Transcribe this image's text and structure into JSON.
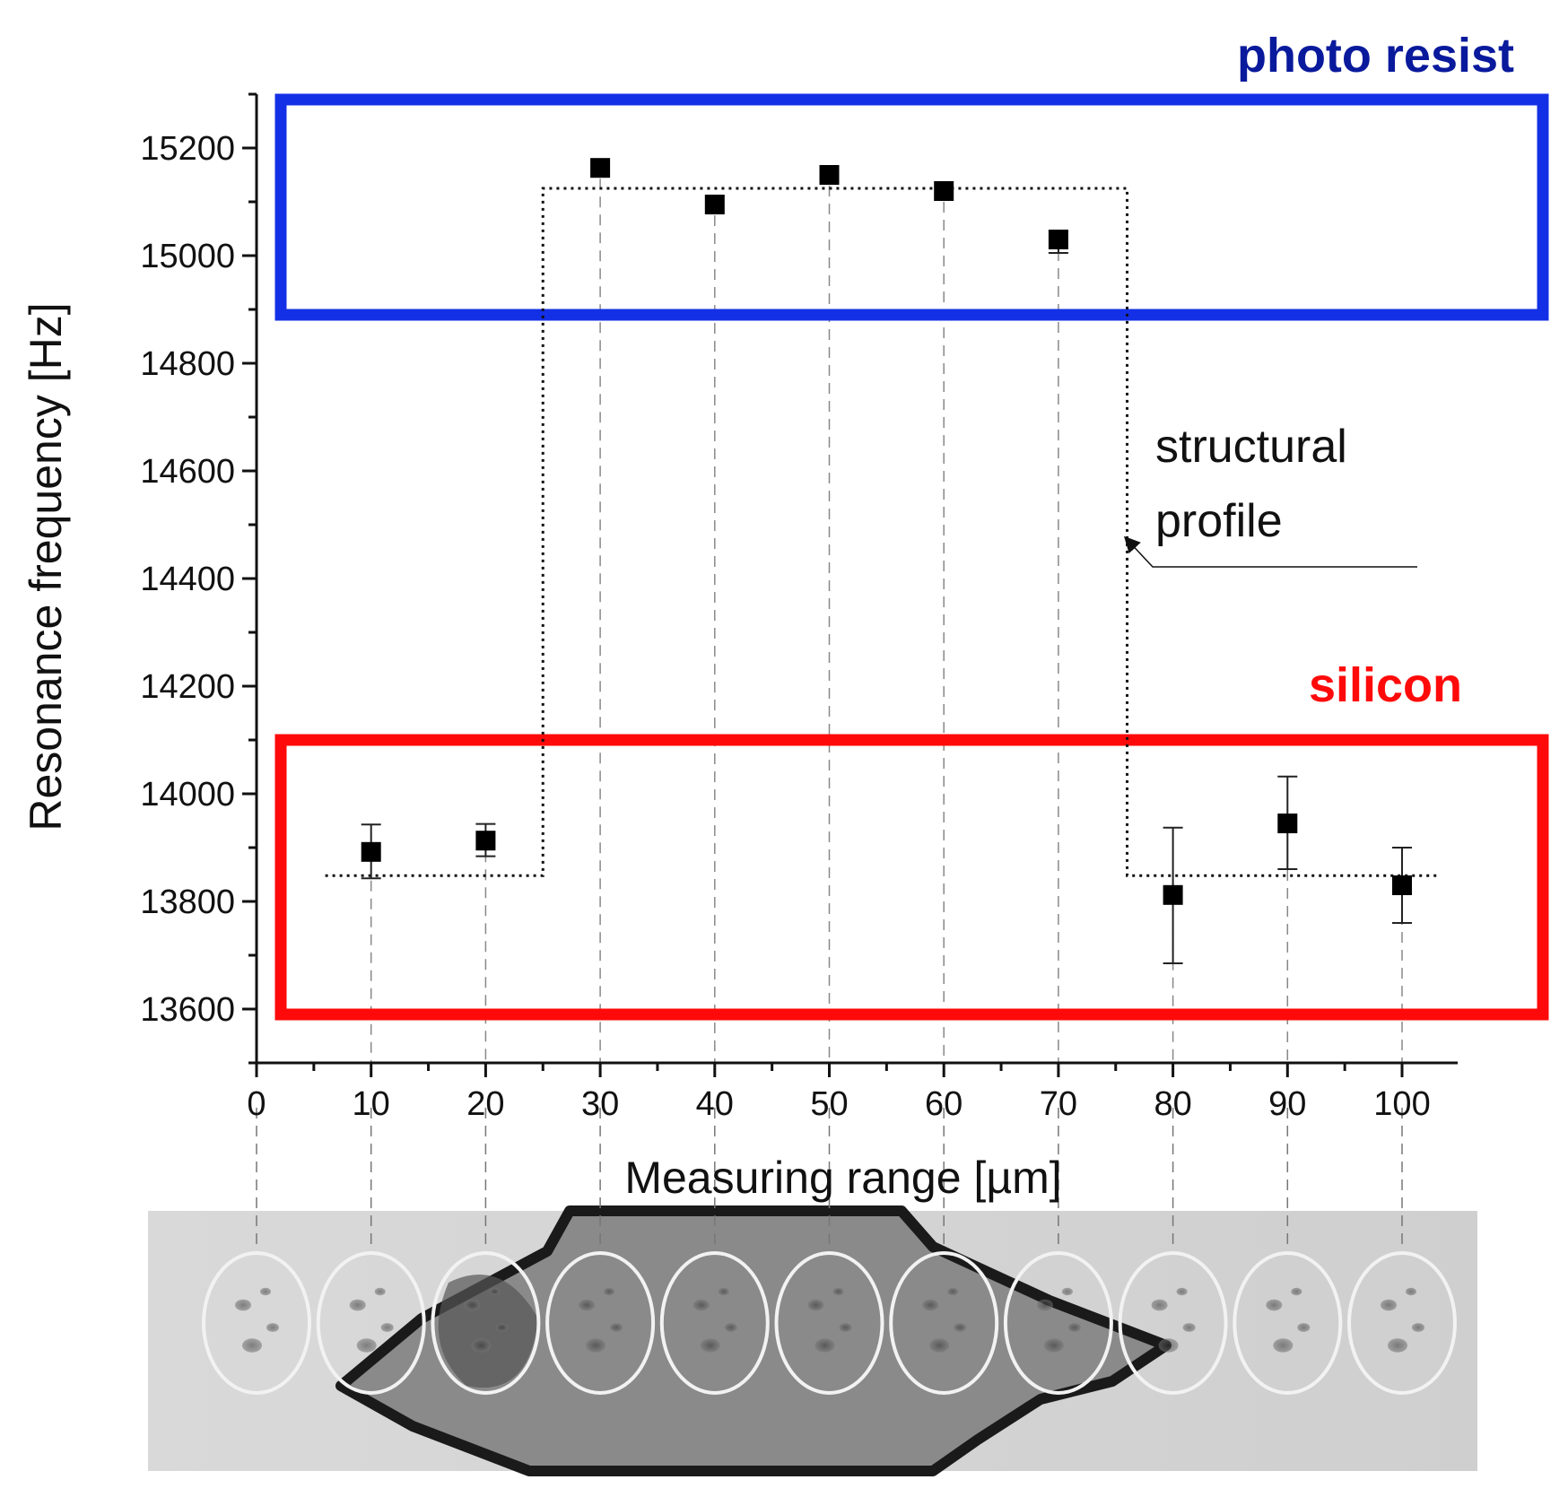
{
  "chart_data": {
    "type": "scatter",
    "xlabel": "Measuring range [µm]",
    "ylabel": "Resonance frequency [Hz]",
    "xlim": [
      0,
      105
    ],
    "ylim": [
      13500,
      15300
    ],
    "x_ticks": [
      0,
      10,
      20,
      30,
      40,
      50,
      60,
      70,
      80,
      90,
      100
    ],
    "y_ticks": [
      13600,
      13800,
      14000,
      14200,
      14400,
      14600,
      14800,
      15000,
      15200
    ],
    "grid": false,
    "series": [
      {
        "x": [
          10,
          20,
          30,
          40,
          50,
          60,
          70,
          80,
          90,
          100
        ],
        "y": [
          13892,
          13913,
          15163,
          15095,
          15150,
          15120,
          15030,
          13812,
          13945,
          13830
        ],
        "error_low": [
          13843,
          13884,
          15163,
          15095,
          15150,
          15120,
          15005,
          13685,
          13860,
          13760
        ],
        "error_high": [
          13943,
          13944,
          15163,
          15095,
          15150,
          15120,
          15045,
          13937,
          14032,
          13900
        ],
        "color": "#000000"
      }
    ],
    "profile": {
      "label_line1": "structural",
      "label_line2": "profile",
      "x": [
        6,
        25,
        25,
        76,
        76,
        103
      ],
      "y": [
        13848,
        13848,
        15125,
        15125,
        13848,
        13848
      ]
    },
    "regions": [
      {
        "label": "photo resist",
        "color": "#1430e6",
        "label_color": "#0a1a9c",
        "y_range": [
          14890,
          15290
        ]
      },
      {
        "label": "silicon",
        "color": "#ff0a0a",
        "label_color": "#ff0a0a",
        "y_range": [
          13590,
          14100
        ]
      }
    ],
    "micrograph": {
      "circle_x": [
        0,
        10,
        20,
        30,
        40,
        50,
        60,
        70,
        80,
        90,
        100
      ]
    }
  }
}
